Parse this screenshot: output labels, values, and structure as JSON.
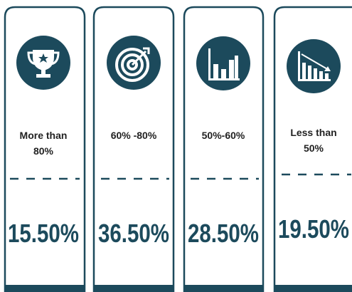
{
  "cards": [
    {
      "label": [
        "More than",
        "80%"
      ],
      "value": "15.50%"
    },
    {
      "label": [
        "60% -80%"
      ],
      "value": "36.50%"
    },
    {
      "label": [
        "50%-60%"
      ],
      "value": "28.50%"
    },
    {
      "label": [
        "Less than",
        "50%"
      ],
      "value": "19.50%"
    }
  ]
}
